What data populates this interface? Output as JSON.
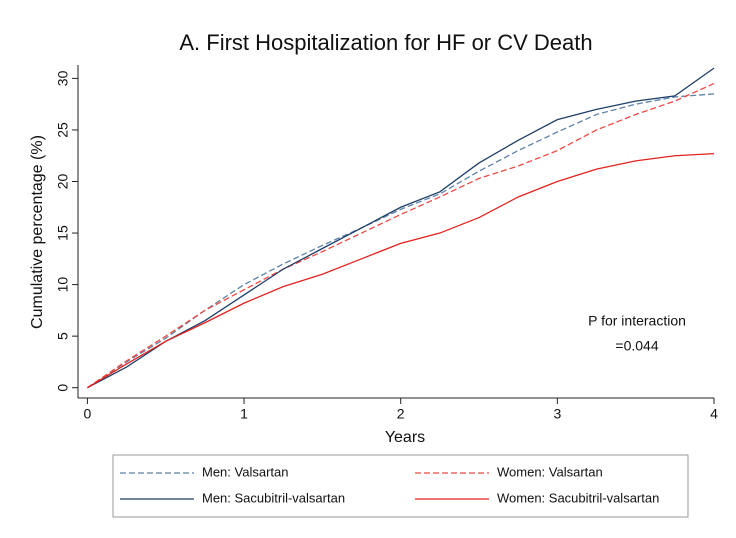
{
  "chart_data": {
    "type": "line",
    "title": "A. First Hospitalization for HF or CV Death",
    "x_label": "Years",
    "y_label": "Cumulative percentage (%)",
    "x": [
      0,
      0.25,
      0.5,
      0.75,
      1,
      1.25,
      1.5,
      1.75,
      2,
      2.25,
      2.5,
      2.75,
      3,
      3.25,
      3.5,
      3.75,
      4
    ],
    "series": [
      {
        "name": "Men: Valsartan",
        "color": "#5f82a8",
        "line_style": "dashed",
        "values": [
          0,
          2.5,
          4.8,
          7.5,
          10,
          12,
          13.8,
          15.5,
          17.3,
          18.8,
          21,
          23,
          24.8,
          26.5,
          27.5,
          28.2,
          28.5
        ]
      },
      {
        "name": "Women: Valsartan",
        "color": "#ef4a44",
        "line_style": "dashed",
        "values": [
          0,
          2.6,
          5,
          7.5,
          9.5,
          11.5,
          13.2,
          15,
          16.8,
          18.5,
          20.3,
          21.5,
          23,
          25,
          26.5,
          27.8,
          29.5
        ]
      },
      {
        "name": "Men: Sacubitril-valsartan",
        "color": "#1f3f68",
        "line_style": "solid",
        "values": [
          0,
          2,
          4.5,
          6.5,
          9,
          11.5,
          13.5,
          15.5,
          17.5,
          19,
          21.8,
          24,
          26,
          27,
          27.8,
          28.3,
          31
        ]
      },
      {
        "name": "Women: Sacubitril-valsartan",
        "color": "#e3231f",
        "line_style": "solid",
        "values": [
          0,
          2.3,
          4.5,
          6.3,
          8.2,
          9.8,
          11,
          12.5,
          14,
          15,
          16.5,
          18.5,
          20,
          21.2,
          22,
          22.5,
          22.7
        ]
      }
    ],
    "annotations": [
      "P for interaction",
      "=0.044"
    ],
    "xlim": [
      -0.06,
      4
    ],
    "xticks": [
      0,
      1,
      2,
      3,
      4
    ],
    "ylim": [
      -1,
      31.3
    ],
    "yticks": [
      0,
      5,
      10,
      15,
      20,
      25,
      30
    ],
    "grid": false,
    "legend_position": "bottom"
  }
}
